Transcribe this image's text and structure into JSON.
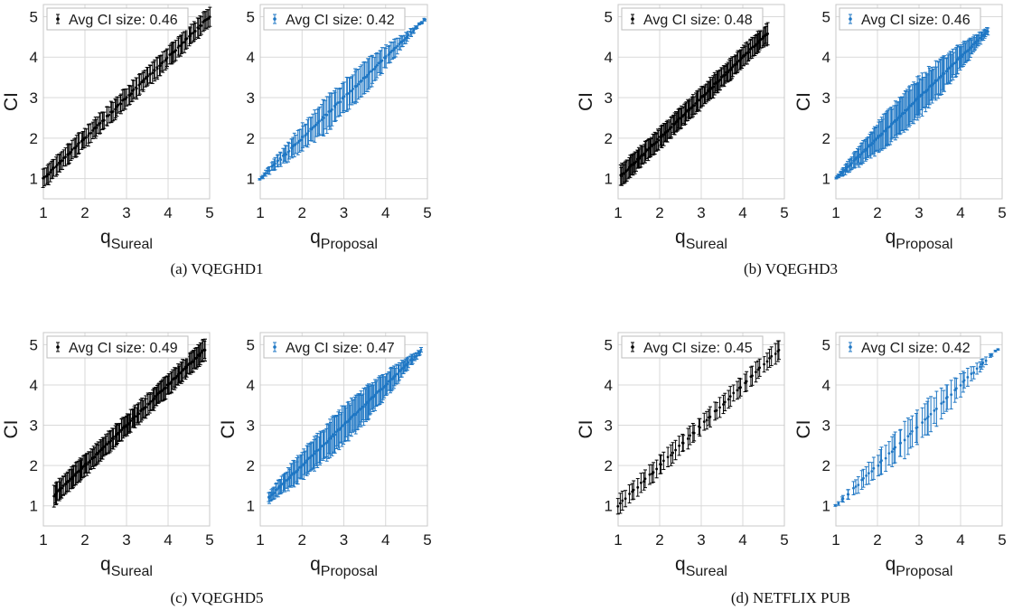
{
  "colors": {
    "sureal": "#000000",
    "proposal": "#1f77c4",
    "grid": "#d9d9d9",
    "frame": "#c8c8c8"
  },
  "panels": [
    {
      "caption": "(a)  VQEGHD1",
      "plots": [
        {
          "method": "sureal",
          "legend": "Avg CI size: 0.46",
          "x_axis": {
            "main": "q",
            "sub": "Sureal"
          },
          "y_axis": "CI"
        },
        {
          "method": "proposal",
          "legend": "Avg CI size: 0.42",
          "x_axis": {
            "main": "q",
            "sub": "Proposal"
          },
          "y_axis": ""
        }
      ]
    },
    {
      "caption": "(b)  VQEGHD3",
      "plots": [
        {
          "method": "sureal",
          "legend": "Avg CI size: 0.48",
          "x_axis": {
            "main": "q",
            "sub": "Sureal"
          },
          "y_axis": "CI"
        },
        {
          "method": "proposal",
          "legend": "Avg CI size: 0.46",
          "x_axis": {
            "main": "q",
            "sub": "Proposal"
          },
          "y_axis": "CI"
        }
      ]
    },
    {
      "caption": "(c)  VQEGHD5",
      "plots": [
        {
          "method": "sureal",
          "legend": "Avg CI size: 0.49",
          "x_axis": {
            "main": "q",
            "sub": "Sureal"
          },
          "y_axis": "CI"
        },
        {
          "method": "proposal",
          "legend": "Avg CI size: 0.47",
          "x_axis": {
            "main": "q",
            "sub": "Proposal"
          },
          "y_axis": "CI"
        }
      ]
    },
    {
      "caption": "(d)  NETFLIX PUB",
      "plots": [
        {
          "method": "sureal",
          "legend": "Avg CI size: 0.45",
          "x_axis": {
            "main": "q",
            "sub": "Sureal"
          },
          "y_axis": "CI"
        },
        {
          "method": "proposal",
          "legend": "Avg CI size: 0.42",
          "x_axis": {
            "main": "q",
            "sub": "Proposal"
          },
          "y_axis": "CI"
        }
      ]
    }
  ],
  "chart_data": [
    {
      "type": "scatter",
      "panel": "(a)  VQEGHD1",
      "series_name": "Avg CI size: 0.46",
      "method": "sureal",
      "xlabel": "q_Sureal",
      "ylabel": "CI",
      "xlim": [
        1,
        5
      ],
      "ylim": [
        0.5,
        5.3
      ],
      "xticks": [
        1,
        2,
        3,
        4,
        5
      ],
      "yticks": [
        1,
        2,
        3,
        4,
        5
      ],
      "grid": true,
      "legend_position": "top-left",
      "x_range": [
        1.0,
        5.0
      ],
      "n_points": 120,
      "ci_width": [
        0.46,
        0.46
      ],
      "markers": "point-with-errorbar"
    },
    {
      "type": "scatter",
      "panel": "(a)  VQEGHD1",
      "series_name": "Avg CI size: 0.42",
      "method": "proposal",
      "xlabel": "q_Proposal",
      "ylabel": "",
      "xlim": [
        1,
        5
      ],
      "ylim": [
        0.5,
        5.3
      ],
      "xticks": [
        1,
        2,
        3,
        4,
        5
      ],
      "yticks": [
        1,
        2,
        3,
        4,
        5
      ],
      "grid": true,
      "legend_position": "top-left",
      "x_range": [
        1.0,
        4.95
      ],
      "n_points": 120,
      "ci_width": [
        0.04,
        0.8
      ],
      "markers": "point-with-errorbar"
    },
    {
      "type": "scatter",
      "panel": "(b)  VQEGHD3",
      "series_name": "Avg CI size: 0.48",
      "method": "sureal",
      "xlabel": "q_Sureal",
      "ylabel": "CI",
      "xlim": [
        1,
        5
      ],
      "ylim": [
        0.5,
        5.3
      ],
      "xticks": [
        1,
        2,
        3,
        4,
        5
      ],
      "yticks": [
        1,
        2,
        3,
        4,
        5
      ],
      "grid": true,
      "legend_position": "top-left",
      "x_range": [
        1.05,
        4.6
      ],
      "n_points": 150,
      "ci_width": [
        0.48,
        0.48
      ],
      "markers": "point-with-errorbar"
    },
    {
      "type": "scatter",
      "panel": "(b)  VQEGHD3",
      "series_name": "Avg CI size: 0.46",
      "method": "proposal",
      "xlabel": "q_Proposal",
      "ylabel": "CI",
      "xlim": [
        1,
        5
      ],
      "ylim": [
        0.5,
        5.3
      ],
      "xticks": [
        1,
        2,
        3,
        4,
        5
      ],
      "yticks": [
        1,
        2,
        3,
        4,
        5
      ],
      "grid": true,
      "legend_position": "top-left",
      "x_range": [
        1.0,
        4.65
      ],
      "n_points": 150,
      "ci_width": [
        0.04,
        0.9
      ],
      "markers": "point-with-errorbar"
    },
    {
      "type": "scatter",
      "panel": "(c)  VQEGHD5",
      "series_name": "Avg CI size: 0.49",
      "method": "sureal",
      "xlabel": "q_Sureal",
      "ylabel": "CI",
      "xlim": [
        1,
        5
      ],
      "ylim": [
        0.5,
        5.3
      ],
      "xticks": [
        1,
        2,
        3,
        4,
        5
      ],
      "yticks": [
        1,
        2,
        3,
        4,
        5
      ],
      "grid": true,
      "legend_position": "top-left",
      "x_range": [
        1.25,
        4.9
      ],
      "n_points": 150,
      "ci_width": [
        0.49,
        0.49
      ],
      "markers": "point-with-errorbar"
    },
    {
      "type": "scatter",
      "panel": "(c)  VQEGHD5",
      "series_name": "Avg CI size: 0.47",
      "method": "proposal",
      "xlabel": "q_Proposal",
      "ylabel": "CI",
      "xlim": [
        1,
        5
      ],
      "ylim": [
        0.5,
        5.3
      ],
      "xticks": [
        1,
        2,
        3,
        4,
        5
      ],
      "yticks": [
        1,
        2,
        3,
        4,
        5
      ],
      "grid": true,
      "legend_position": "top-left",
      "x_range": [
        1.2,
        4.85
      ],
      "n_points": 150,
      "ci_width": [
        0.1,
        0.85
      ],
      "markers": "point-with-errorbar"
    },
    {
      "type": "scatter",
      "panel": "(d)  NETFLIX PUB",
      "series_name": "Avg CI size: 0.45",
      "method": "sureal",
      "xlabel": "q_Sureal",
      "ylabel": "CI",
      "xlim": [
        1,
        5
      ],
      "ylim": [
        0.5,
        5.3
      ],
      "xticks": [
        1,
        2,
        3,
        4,
        5
      ],
      "yticks": [
        1,
        2,
        3,
        4,
        5
      ],
      "grid": true,
      "legend_position": "top-left",
      "x_range": [
        1.0,
        4.9
      ],
      "n_points": 60,
      "ci_width": [
        0.45,
        0.45
      ],
      "markers": "point-with-errorbar"
    },
    {
      "type": "scatter",
      "panel": "(d)  NETFLIX PUB",
      "series_name": "Avg CI size: 0.42",
      "method": "proposal",
      "xlabel": "q_Proposal",
      "ylabel": "CI",
      "xlim": [
        1,
        5
      ],
      "ylim": [
        0.5,
        5.3
      ],
      "xticks": [
        1,
        2,
        3,
        4,
        5
      ],
      "yticks": [
        1,
        2,
        3,
        4,
        5
      ],
      "grid": true,
      "legend_position": "top-left",
      "x_range": [
        1.0,
        4.9
      ],
      "n_points": 60,
      "ci_width": [
        0.04,
        0.8
      ],
      "markers": "point-with-errorbar"
    }
  ]
}
